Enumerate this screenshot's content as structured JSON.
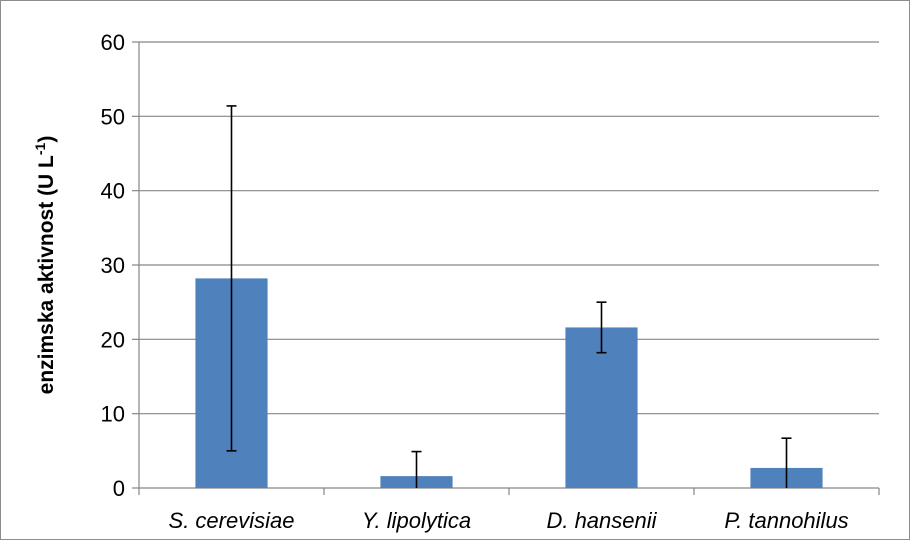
{
  "chart_data": {
    "type": "bar",
    "categories": [
      "S. cerevisiae",
      "Y. lipolytica",
      "D. hansenii",
      "P. tannohilus"
    ],
    "values": [
      28.2,
      1.6,
      21.6,
      2.7
    ],
    "error_plus": [
      23.2,
      3.3,
      3.4,
      4.0
    ],
    "error_minus": [
      23.2,
      1.6,
      3.4,
      2.7
    ],
    "ylim": [
      0,
      60
    ],
    "yticks": [
      0,
      10,
      20,
      30,
      40,
      50,
      60
    ],
    "ylabel_main": "enzimska aktivnost   (U L",
    "ylabel_sup": "-1",
    "ylabel_close": ")",
    "grid": true,
    "colors": {
      "bar": "#4f81bd",
      "grid": "#868686",
      "axis": "#868686",
      "error": "#000000"
    }
  }
}
